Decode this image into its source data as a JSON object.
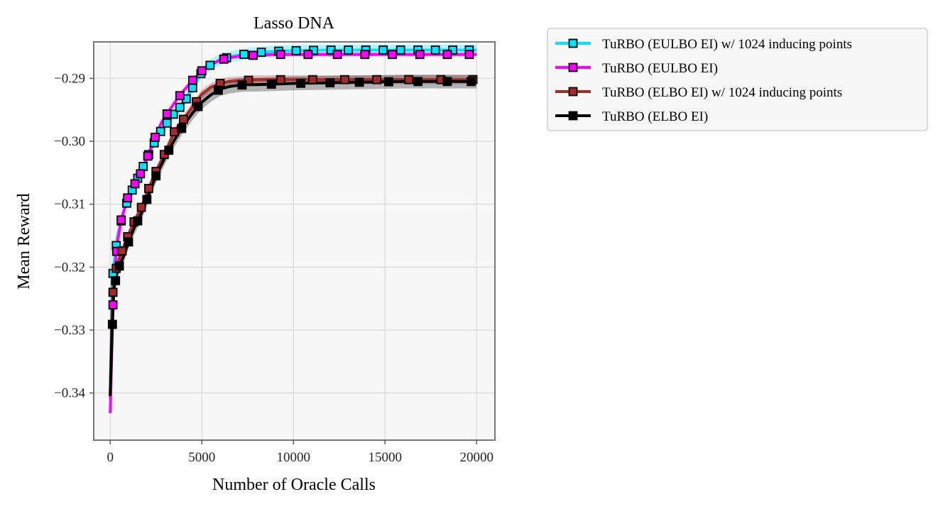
{
  "chart_data": {
    "type": "line",
    "title": "Lasso DNA",
    "xlabel": "Number of Oracle Calls",
    "ylabel": "Mean Reward",
    "xlim": [
      -900,
      21000
    ],
    "ylim": [
      -0.3475,
      -0.2842
    ],
    "xticks": [
      0,
      5000,
      10000,
      15000,
      20000
    ],
    "xtick_labels": [
      "0",
      "5000",
      "10000",
      "15000",
      "20000"
    ],
    "yticks": [
      -0.34,
      -0.33,
      -0.32,
      -0.31,
      -0.3,
      -0.29
    ],
    "ytick_labels": [
      "−0.34",
      "−0.33",
      "−0.32",
      "−0.31",
      "−0.30",
      "−0.29"
    ],
    "grid": true,
    "legend_position": "outside-right",
    "background": "#f7f7f7",
    "series": [
      {
        "name": "TuRBO (EULBO EI) w/ 1024 inducing points",
        "color": "#00e5ff",
        "marker_fill": "#00e5ff",
        "band": 0.0009,
        "x": [
          0,
          100,
          200,
          400,
          700,
          1000,
          1400,
          1800,
          2200,
          2600,
          3000,
          3500,
          4000,
          4500,
          5000,
          5500,
          6000,
          6500,
          7000,
          7500,
          8000,
          9000,
          10000,
          12000,
          14000,
          16000,
          18000,
          20000
        ],
        "y": [
          -0.341,
          -0.3225,
          -0.3195,
          -0.315,
          -0.3115,
          -0.309,
          -0.3065,
          -0.304,
          -0.3015,
          -0.299,
          -0.2975,
          -0.2955,
          -0.294,
          -0.2915,
          -0.289,
          -0.2878,
          -0.287,
          -0.2866,
          -0.2863,
          -0.2861,
          -0.2859,
          -0.2857,
          -0.2856,
          -0.2855,
          -0.2855,
          -0.2855,
          -0.2855,
          -0.2855
        ],
        "marker_x": [
          150,
          330,
          600,
          900,
          1200,
          1500,
          1800,
          2100,
          2400,
          2750,
          3100,
          3450,
          3800,
          4150,
          4500,
          4950,
          5450,
          6350,
          7300,
          8250,
          9200,
          10150,
          11100,
          12050,
          13000,
          13950,
          14900,
          15850,
          16800,
          17750,
          18700,
          19600
        ]
      },
      {
        "name": "TuRBO (EULBO EI)",
        "color": "#ff00ff",
        "marker_fill": "#ff00ff",
        "band": 0.0003,
        "x": [
          0,
          100,
          150,
          250,
          400,
          600,
          800,
          1000,
          1300,
          1600,
          1900,
          2200,
          2500,
          2800,
          3200,
          3600,
          4000,
          4500,
          5000,
          5500,
          6000,
          6500,
          7000,
          7500,
          8000,
          9000,
          10000,
          12000,
          14000,
          16000,
          18000,
          20000
        ],
        "y": [
          -0.3432,
          -0.332,
          -0.326,
          -0.3205,
          -0.316,
          -0.3125,
          -0.3105,
          -0.3085,
          -0.307,
          -0.3055,
          -0.3035,
          -0.3012,
          -0.299,
          -0.297,
          -0.2952,
          -0.2935,
          -0.292,
          -0.2903,
          -0.2888,
          -0.2878,
          -0.2871,
          -0.2867,
          -0.2865,
          -0.2864,
          -0.2863,
          -0.2862,
          -0.2862,
          -0.2862,
          -0.2862,
          -0.2862,
          -0.2862,
          -0.2862
        ],
        "marker_x": [
          150,
          350,
          600,
          950,
          1350,
          1650,
          2050,
          2450,
          3100,
          3800,
          4500,
          5000,
          6200,
          7800,
          9300,
          10800,
          12400,
          13900,
          15400,
          16900,
          18400,
          19600
        ]
      },
      {
        "name": "TuRBO (ELBO EI) w/ 1024 inducing points",
        "color": "#a52a2a",
        "marker_fill": "#a52a2a",
        "band": 0.0007,
        "x": [
          0,
          100,
          200,
          400,
          700,
          1000,
          1300,
          1700,
          2100,
          2500,
          3000,
          3500,
          4000,
          4500,
          5000,
          5500,
          6000,
          6500,
          7000,
          7500,
          8000,
          9000,
          10000,
          12000,
          14000,
          16000,
          18000,
          20000
        ],
        "y": [
          -0.3405,
          -0.3265,
          -0.3215,
          -0.3195,
          -0.317,
          -0.3148,
          -0.3128,
          -0.3105,
          -0.3075,
          -0.3048,
          -0.3018,
          -0.2985,
          -0.2965,
          -0.2945,
          -0.2925,
          -0.2914,
          -0.2908,
          -0.2905,
          -0.2904,
          -0.2903,
          -0.2902,
          -0.2902,
          -0.2902,
          -0.2902,
          -0.2902,
          -0.2902,
          -0.2902,
          -0.2902
        ],
        "marker_x": [
          150,
          330,
          650,
          950,
          1300,
          1700,
          2100,
          2500,
          2950,
          3500,
          4000,
          4700,
          6000,
          7550,
          9300,
          11050,
          12800,
          14550,
          16300,
          18050,
          19800
        ]
      },
      {
        "name": "TuRBO (ELBO EI)",
        "color": "#000000",
        "marker_fill": "#000000",
        "band": 0.0011,
        "x": [
          0,
          100,
          200,
          400,
          700,
          1000,
          1300,
          1700,
          2100,
          2500,
          3000,
          3500,
          4000,
          4500,
          5000,
          5500,
          6000,
          6500,
          7000,
          7500,
          8000,
          9000,
          10000,
          12000,
          14000,
          16000,
          18000,
          20000
        ],
        "y": [
          -0.3405,
          -0.3305,
          -0.3235,
          -0.3205,
          -0.3185,
          -0.316,
          -0.3138,
          -0.3115,
          -0.3085,
          -0.3055,
          -0.3025,
          -0.2998,
          -0.2975,
          -0.2955,
          -0.2938,
          -0.2926,
          -0.2917,
          -0.2913,
          -0.2911,
          -0.291,
          -0.291,
          -0.2909,
          -0.2908,
          -0.2907,
          -0.2906,
          -0.2905,
          -0.2905,
          -0.2905
        ],
        "marker_x": [
          120,
          290,
          500,
          1000,
          1500,
          2000,
          2500,
          3200,
          3900,
          4800,
          5900,
          7200,
          8800,
          10400,
          12000,
          13600,
          15200,
          16800,
          18400,
          19700
        ]
      }
    ]
  }
}
